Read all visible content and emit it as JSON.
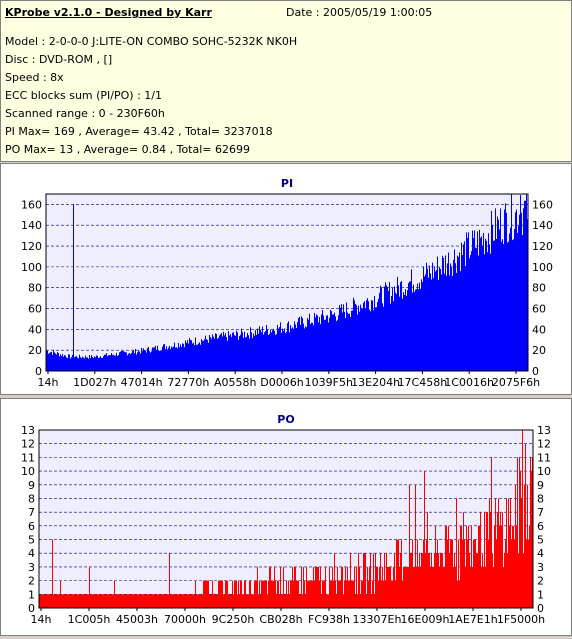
{
  "info": {
    "title": "KProbe v2.1.0 - Designed by Karr",
    "date": "Date : 2005/05/19 1:00:05",
    "model": "Model : 2-0-0-0 J:LITE-ON COMBO SOHC-5232K NK0H",
    "disc": "Disc : DVD-ROM ,  []",
    "speed": "Speed : 8x",
    "ecc": "ECC blocks sum (PI/PO) : 1/1",
    "range": "Scanned range : 0 - 230F60h",
    "pi": "PI Max= 169 , Average= 43.42 , Total= 3237018",
    "po": "PO Max= 13 , Average= 0.84 , Total= 62699"
  },
  "colors": {
    "pi_series": "#0000ff",
    "po_series": "#ff0000",
    "grid": "#000080",
    "plot_bg": "#eeeeff"
  },
  "chart_data": [
    {
      "type": "bar",
      "title": "PI",
      "ylim": [
        0,
        170
      ],
      "yticks": [
        0,
        20,
        40,
        60,
        80,
        100,
        120,
        140,
        160
      ],
      "xticks": [
        "14h",
        "1D027h",
        "47014h",
        "72770h",
        "A0558h",
        "D0006h",
        "1039F5h",
        "13E204h",
        "17C458h",
        "1C0016h",
        "2075F6h"
      ],
      "x_range": [
        0,
        1
      ],
      "profile": {
        "x": [
          0,
          0.05,
          0.1,
          0.2,
          0.3,
          0.4,
          0.5,
          0.6,
          0.7,
          0.8,
          0.9,
          0.95,
          1.0
        ],
        "y": [
          20,
          14,
          14,
          20,
          29,
          36,
          44,
          56,
          75,
          98,
          128,
          148,
          160
        ]
      },
      "spikes": [
        {
          "x": 0.056,
          "y": 160
        },
        {
          "x": 0.985,
          "y": 169
        }
      ],
      "grid": true
    },
    {
      "type": "bar",
      "title": "PO",
      "ylim": [
        0,
        13
      ],
      "yticks": [
        0,
        1,
        2,
        3,
        4,
        5,
        6,
        7,
        8,
        9,
        10,
        11,
        12,
        13
      ],
      "xticks": [
        "14h",
        "1C005h",
        "45003h",
        "70000h",
        "9C250h",
        "CB028h",
        "FC938h",
        "13307Eh",
        "16E009h",
        "1AE7E1h",
        "1F5000h"
      ],
      "x_range": [
        0,
        1
      ],
      "profile": {
        "x": [
          0,
          0.3,
          0.5,
          0.6,
          0.7,
          0.8,
          0.9,
          0.95,
          1.0
        ],
        "y": [
          1,
          1,
          2,
          2,
          3,
          4,
          5,
          6,
          9
        ]
      },
      "spikes": [
        {
          "x": 0.75,
          "y": 9
        },
        {
          "x": 0.78,
          "y": 10
        },
        {
          "x": 0.98,
          "y": 13
        },
        {
          "x": 0.985,
          "y": 12
        }
      ],
      "grid": true
    }
  ]
}
